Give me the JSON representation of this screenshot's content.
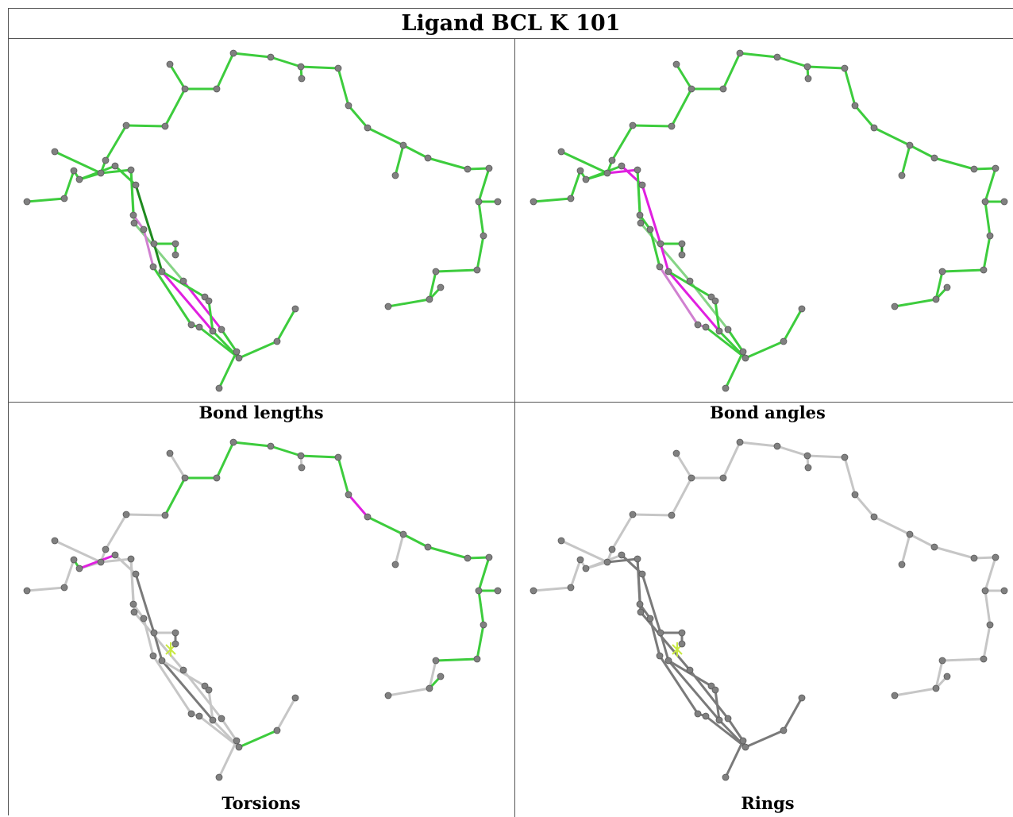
{
  "title": "Ligand BCL K 101",
  "panels": [
    {
      "caption": "Bond lengths",
      "mode": "lengths"
    },
    {
      "caption": "Bond angles",
      "mode": "angles"
    },
    {
      "caption": "Torsions",
      "mode": "torsions"
    },
    {
      "caption": "Rings",
      "mode": "rings"
    }
  ],
  "colors": {
    "green": "#3dcc3d",
    "dark_green": "#1f8a1f",
    "pale_green": "#86d486",
    "magenta": "#e020e0",
    "pale_magenta": "#d080d0",
    "light_gray": "#c6c6c6",
    "dark_gray": "#7a7a7a",
    "atom": "#808080",
    "yellow": "#c8e840"
  }
}
